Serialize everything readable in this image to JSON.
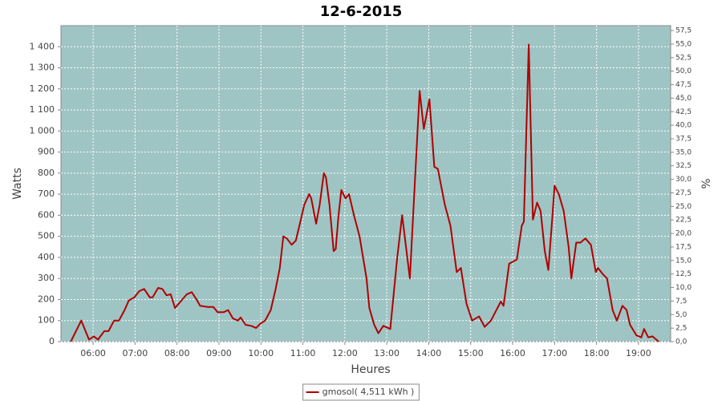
{
  "chart_data": {
    "type": "line",
    "title": "12-6-2015",
    "x_label": "Heures",
    "y_label": "Watts",
    "y2_label": "%",
    "x": [
      "05:28",
      "05:43",
      "05:54",
      "06:01",
      "06:07",
      "06:16",
      "06:22",
      "06:30",
      "06:37",
      "06:45",
      "06:51",
      "06:59",
      "07:06",
      "07:13",
      "07:21",
      "07:25",
      "07:33",
      "07:39",
      "07:45",
      "07:51",
      "07:57",
      "08:05",
      "08:14",
      "08:21",
      "08:28",
      "08:33",
      "08:44",
      "08:52",
      "08:58",
      "09:07",
      "09:13",
      "09:20",
      "09:27",
      "09:31",
      "09:38",
      "09:46",
      "09:53",
      "09:59",
      "10:06",
      "10:14",
      "10:21",
      "10:27",
      "10:32",
      "10:37",
      "10:44",
      "10:50",
      "10:55",
      "11:02",
      "11:09",
      "11:12",
      "11:19",
      "11:24",
      "11:30",
      "11:33",
      "11:38",
      "11:44",
      "11:47",
      "11:51",
      "11:55",
      "12:01",
      "12:06",
      "12:13",
      "12:21",
      "12:31",
      "12:35",
      "12:42",
      "12:48",
      "12:55",
      "13:05",
      "13:15",
      "13:22",
      "13:33",
      "13:47",
      "13:53",
      "14:01",
      "14:08",
      "14:13",
      "14:23",
      "14:31",
      "14:40",
      "14:46",
      "14:54",
      "15:02",
      "15:12",
      "15:20",
      "15:29",
      "15:43",
      "15:47",
      "15:55",
      "16:06",
      "16:13",
      "16:16",
      "16:23",
      "16:29",
      "16:35",
      "16:40",
      "16:46",
      "16:51",
      "16:57",
      "17:00",
      "17:06",
      "17:13",
      "17:20",
      "17:24",
      "17:31",
      "17:37",
      "17:44",
      "17:52",
      "17:59",
      "18:02",
      "18:09",
      "18:15",
      "18:23",
      "18:29",
      "18:37",
      "18:43",
      "18:48",
      "18:57",
      "19:04",
      "19:08",
      "19:14",
      "19:20",
      "19:29"
    ],
    "series": [
      {
        "name": "gmosol( 4,511 kWh )",
        "color": "#b00000",
        "values": [
          0,
          100,
          10,
          25,
          10,
          50,
          50,
          100,
          100,
          150,
          195,
          210,
          240,
          250,
          210,
          210,
          255,
          250,
          220,
          225,
          160,
          190,
          225,
          235,
          200,
          170,
          165,
          165,
          140,
          140,
          150,
          110,
          100,
          115,
          80,
          75,
          65,
          85,
          100,
          150,
          250,
          350,
          500,
          490,
          460,
          480,
          550,
          650,
          700,
          680,
          560,
          650,
          800,
          780,
          650,
          430,
          440,
          600,
          720,
          680,
          700,
          600,
          500,
          300,
          160,
          80,
          40,
          75,
          60,
          400,
          600,
          300,
          1190,
          1010,
          1150,
          830,
          820,
          650,
          550,
          330,
          350,
          180,
          100,
          120,
          70,
          100,
          190,
          170,
          370,
          390,
          550,
          570,
          1410,
          580,
          660,
          620,
          430,
          340,
          600,
          740,
          700,
          620,
          450,
          300,
          470,
          470,
          490,
          460,
          330,
          350,
          320,
          300,
          150,
          100,
          170,
          150,
          80,
          30,
          20,
          60,
          20,
          25,
          0
        ]
      }
    ],
    "xlim": [
      "05:14",
      "19:46"
    ],
    "xticks": [
      "06:00",
      "07:00",
      "08:00",
      "09:00",
      "10:00",
      "11:00",
      "12:00",
      "13:00",
      "14:00",
      "15:00",
      "16:00",
      "17:00",
      "18:00",
      "19:00"
    ],
    "ylim": [
      0,
      1500
    ],
    "yticks": [
      0,
      100,
      200,
      300,
      400,
      500,
      600,
      700,
      800,
      900,
      {
        "value": 1000,
        "label": "1 000"
      },
      {
        "value": 1100,
        "label": "1 100"
      },
      {
        "value": 1200,
        "label": "1 200"
      },
      {
        "value": 1300,
        "label": "1 300"
      },
      {
        "value": 1400,
        "label": "1 400"
      }
    ],
    "y2lim": [
      0,
      58.4
    ],
    "y2ticks": [
      {
        "value": 0,
        "label": "0,0"
      },
      {
        "value": 2.5,
        "label": "2,5"
      },
      {
        "value": 5,
        "label": "5,0"
      },
      {
        "value": 7.5,
        "label": "7,5"
      },
      {
        "value": 10,
        "label": "10,0"
      },
      {
        "value": 12.5,
        "label": "12,5"
      },
      {
        "value": 15,
        "label": "15,0"
      },
      {
        "value": 17.5,
        "label": "17,5"
      },
      {
        "value": 20,
        "label": "20,0"
      },
      {
        "value": 22.5,
        "label": "22,5"
      },
      {
        "value": 25,
        "label": "25,0"
      },
      {
        "value": 27.5,
        "label": "27,5"
      },
      {
        "value": 30,
        "label": "30,0"
      },
      {
        "value": 32.5,
        "label": "32,5"
      },
      {
        "value": 35,
        "label": "35,0"
      },
      {
        "value": 37.5,
        "label": "37,5"
      },
      {
        "value": 40,
        "label": "40,0"
      },
      {
        "value": 42.5,
        "label": "42,5"
      },
      {
        "value": 45,
        "label": "45,0"
      },
      {
        "value": 47.5,
        "label": "47,5"
      },
      {
        "value": 50,
        "label": "50,0"
      },
      {
        "value": 52.5,
        "label": "52,5"
      },
      {
        "value": 55,
        "label": "55,0"
      },
      {
        "value": 57.5,
        "label": "57,5"
      }
    ],
    "grid": true,
    "plot_background": "#9fc4c4",
    "legend": "bottom"
  }
}
